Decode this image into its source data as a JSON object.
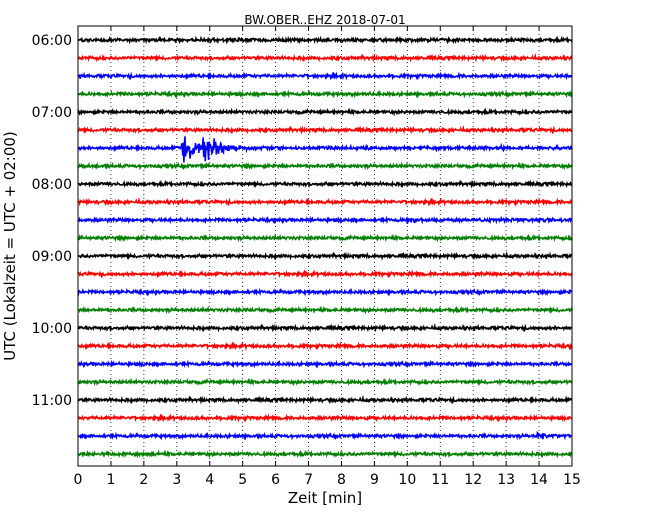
{
  "chart_data": {
    "type": "line",
    "title": "BW.OBER..EHZ 2018-07-01",
    "xlabel": "Zeit  [min]",
    "ylabel": "UTC (Lokalzeit = UTC + 02:00)",
    "xlim": [
      0,
      15
    ],
    "x_ticks": [
      "0",
      "1",
      "2",
      "3",
      "4",
      "5",
      "6",
      "7",
      "8",
      "9",
      "10",
      "11",
      "12",
      "13",
      "14",
      "15"
    ],
    "y_ticks": [
      "06:00",
      "07:00",
      "08:00",
      "09:00",
      "10:00",
      "11:00"
    ],
    "grid": true,
    "trace_interval_minutes": 15,
    "trace_start": "06:00",
    "trace_colors": [
      "#000000",
      "#ff0000",
      "#0000ff",
      "#008000"
    ],
    "traces": [
      {
        "start": "06:00"
      },
      {
        "start": "06:15"
      },
      {
        "start": "06:30"
      },
      {
        "start": "06:45"
      },
      {
        "start": "07:00"
      },
      {
        "start": "07:15"
      },
      {
        "start": "07:30",
        "events": [
          {
            "t": 3.15,
            "amp": 4.2,
            "decay": 0.45
          },
          {
            "t": 3.8,
            "amp": 3.2,
            "decay": 0.5
          }
        ]
      },
      {
        "start": "07:45"
      },
      {
        "start": "08:00"
      },
      {
        "start": "08:15"
      },
      {
        "start": "08:30",
        "events": [
          {
            "t": 10.0,
            "amp": 1.4,
            "decay": 0.15
          }
        ]
      },
      {
        "start": "08:45"
      },
      {
        "start": "09:00"
      },
      {
        "start": "09:15"
      },
      {
        "start": "09:30"
      },
      {
        "start": "09:45"
      },
      {
        "start": "10:00"
      },
      {
        "start": "10:15"
      },
      {
        "start": "10:30"
      },
      {
        "start": "10:45"
      },
      {
        "start": "11:00"
      },
      {
        "start": "11:15"
      },
      {
        "start": "11:30",
        "events": [
          {
            "t": 13.95,
            "amp": 1.6,
            "decay": 0.12
          }
        ]
      },
      {
        "start": "11:45"
      }
    ]
  }
}
